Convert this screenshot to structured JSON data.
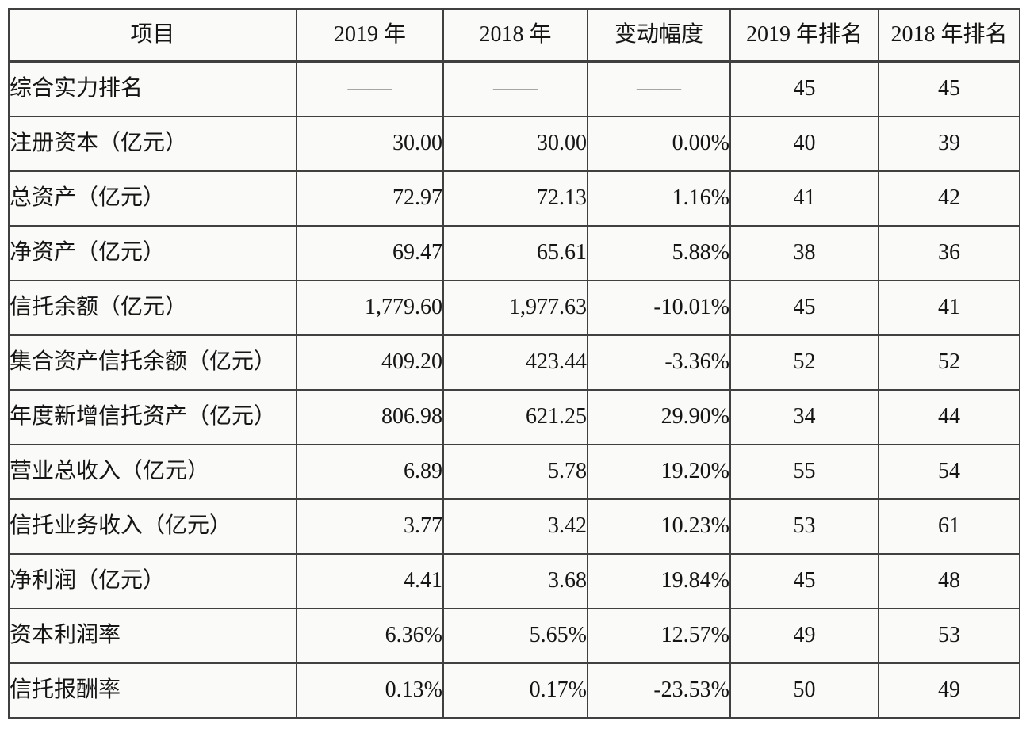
{
  "colors": {
    "border": "#404040",
    "cell_bg": "#fafaf8",
    "text": "#151515",
    "page_bg": "#ffffff"
  },
  "table": {
    "dash": "——",
    "headers": [
      "项目",
      "2019 年",
      "2018 年",
      "变动幅度",
      "2019 年排名",
      "2018 年排名"
    ],
    "rows": [
      [
        "综合实力排名",
        "——",
        "——",
        "——",
        "45",
        "45"
      ],
      [
        "注册资本（亿元）",
        "30.00",
        "30.00",
        "0.00%",
        "40",
        "39"
      ],
      [
        "总资产（亿元）",
        "72.97",
        "72.13",
        "1.16%",
        "41",
        "42"
      ],
      [
        "净资产（亿元）",
        "69.47",
        "65.61",
        "5.88%",
        "38",
        "36"
      ],
      [
        "信托余额（亿元）",
        "1,779.60",
        "1,977.63",
        "-10.01%",
        "45",
        "41"
      ],
      [
        "集合资产信托余额（亿元）",
        "409.20",
        "423.44",
        "-3.36%",
        "52",
        "52"
      ],
      [
        "年度新增信托资产（亿元）",
        "806.98",
        "621.25",
        "29.90%",
        "34",
        "44"
      ],
      [
        "营业总收入（亿元）",
        "6.89",
        "5.78",
        "19.20%",
        "55",
        "54"
      ],
      [
        "信托业务收入（亿元）",
        "3.77",
        "3.42",
        "10.23%",
        "53",
        "61"
      ],
      [
        "净利润（亿元）",
        "4.41",
        "3.68",
        "19.84%",
        "45",
        "48"
      ],
      [
        "资本利润率",
        "6.36%",
        "5.65%",
        "12.57%",
        "49",
        "53"
      ],
      [
        "信托报酬率",
        "0.13%",
        "0.17%",
        "-23.53%",
        "50",
        "49"
      ]
    ]
  }
}
